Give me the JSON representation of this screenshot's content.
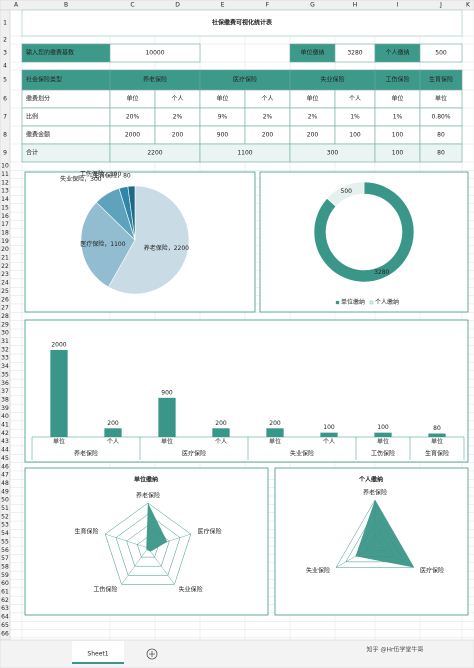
{
  "sheet": {
    "column_headers": [
      "A",
      "B",
      "C",
      "D",
      "E",
      "F",
      "G",
      "H",
      "I",
      "J",
      "K"
    ],
    "row_numbers": [
      1,
      2,
      3,
      4,
      5,
      6,
      7,
      8,
      9,
      10,
      11,
      12,
      13,
      14,
      15,
      16,
      17,
      18,
      19,
      20,
      21,
      22,
      23,
      24,
      25,
      26,
      27,
      28,
      29,
      30,
      31,
      32,
      33,
      34,
      35,
      36,
      37,
      38,
      39,
      40,
      41,
      42,
      43,
      44,
      45,
      46,
      47,
      48,
      49,
      50,
      51,
      52,
      53,
      54,
      55,
      56,
      57,
      58,
      59,
      60,
      61,
      62,
      63,
      64,
      65,
      66
    ],
    "title": "社保缴费可视化统计表",
    "input": {
      "label": "输入您的缴费基数",
      "value": 10000,
      "unit_label": "单位缴纳",
      "unit_value": 3280,
      "person_label": "个人缴纳",
      "person_value": 500
    },
    "table": {
      "header": [
        "社会保险类型",
        "养老保险",
        "医疗保险",
        "失业保险",
        "工伤保险",
        "生育保险"
      ],
      "rows": [
        [
          "缴费划分",
          "单位",
          "个人",
          "单位",
          "个人",
          "单位",
          "个人",
          "单位",
          "单位"
        ],
        [
          "比例",
          "20%",
          "2%",
          "9%",
          "2%",
          "2%",
          "1%",
          "1%",
          "0.80%"
        ],
        [
          "缴费金额",
          2000,
          200,
          900,
          200,
          200,
          100,
          100,
          80
        ],
        [
          "合计",
          2200,
          1100,
          300,
          100,
          80
        ]
      ]
    },
    "tab": "Sheet1",
    "watermark": "知乎 @Hr伍学堂牛哥"
  },
  "chart_data": [
    {
      "type": "pie",
      "categories": [
        "养老保险",
        "医疗保险",
        "失业保险",
        "工伤保险",
        "生育保险"
      ],
      "values": [
        2200,
        1100,
        300,
        100,
        80
      ],
      "value_labels": [
        "养老保险，2200",
        "医疗保险，1100",
        "失业保险，300",
        "工伤保险，100",
        "生育保险，80"
      ],
      "colors": [
        "#c9dce6",
        "#92bccf",
        "#5ea3bb",
        "#2f87a7",
        "#1e6a86"
      ]
    },
    {
      "type": "donut",
      "categories": [
        "单位缴纳",
        "个人缴纳"
      ],
      "values": [
        3280,
        500
      ],
      "colors": [
        "#3a9688",
        "#e6f0ee"
      ]
    },
    {
      "type": "bar",
      "categories": [
        "单位",
        "个人",
        "单位",
        "个人",
        "单位",
        "个人",
        "单位",
        "单位"
      ],
      "group_labels": [
        "养老保险",
        null,
        "医疗保险",
        null,
        "失业保险",
        null,
        "工伤保险",
        "生育保险"
      ],
      "values": [
        2000,
        200,
        900,
        200,
        200,
        100,
        100,
        80
      ],
      "ylim": [
        0,
        2000
      ],
      "color": "#3a9688"
    },
    {
      "type": "radar",
      "title": "单位缴纳",
      "categories": [
        "养老保险",
        "医疗保险",
        "失业保险",
        "工伤保险",
        "生育保险"
      ],
      "values": [
        2000,
        900,
        200,
        100,
        80
      ],
      "rlim": [
        0,
        2000
      ],
      "color": "#3a9688"
    },
    {
      "type": "radar",
      "title": "个人缴纳",
      "categories": [
        "养老保险",
        "医疗保险",
        "失业保险"
      ],
      "values": [
        200,
        200,
        100
      ],
      "rlim": [
        0,
        200
      ],
      "color": "#3a9688"
    }
  ]
}
